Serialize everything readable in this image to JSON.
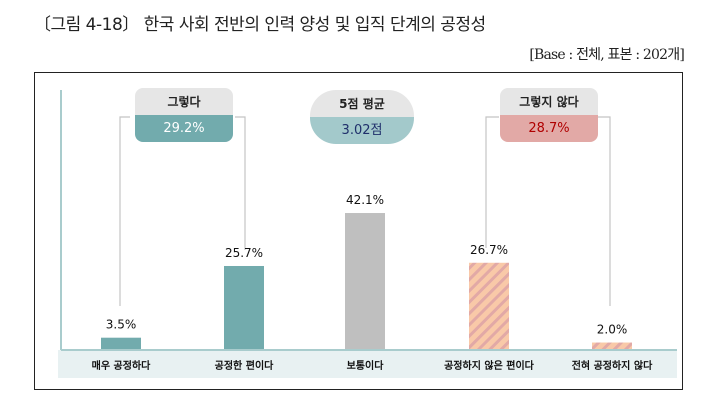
{
  "title": "〔그림 4-18〕 한국 사회 전반의 인력 양성 및 입직 단계의 공정성",
  "base_note": "[Base : 전체,  표본 : 202개]",
  "summary": {
    "agree": {
      "label": "그렇다",
      "value": "29.2%"
    },
    "mean": {
      "label": "5점 평균",
      "value": "3.02점"
    },
    "disagree": {
      "label": "그렇지 않다",
      "value": "28.7%"
    }
  },
  "colors": {
    "agree": "#72abad",
    "neutral": "#bfbfbf",
    "disagree_base": "#f9c9a8",
    "disagree_stripe": "#e2a9a6",
    "mean": "#a3c9cb",
    "axis": "#a9cccd",
    "band": "#e8f1f2"
  },
  "chart_data": {
    "type": "bar",
    "categories": [
      "매우 공정하다",
      "공정한 편이다",
      "보통이다",
      "공정하지 않은 편이다",
      "전혀 공정하지 않다"
    ],
    "values": [
      3.5,
      25.7,
      42.1,
      26.7,
      2.0
    ],
    "labels": [
      "3.5%",
      "25.7%",
      "42.1%",
      "26.7%",
      "2.0%"
    ],
    "ylabel": "",
    "xlabel": "",
    "ylim": [
      0,
      50
    ],
    "grid": false
  }
}
